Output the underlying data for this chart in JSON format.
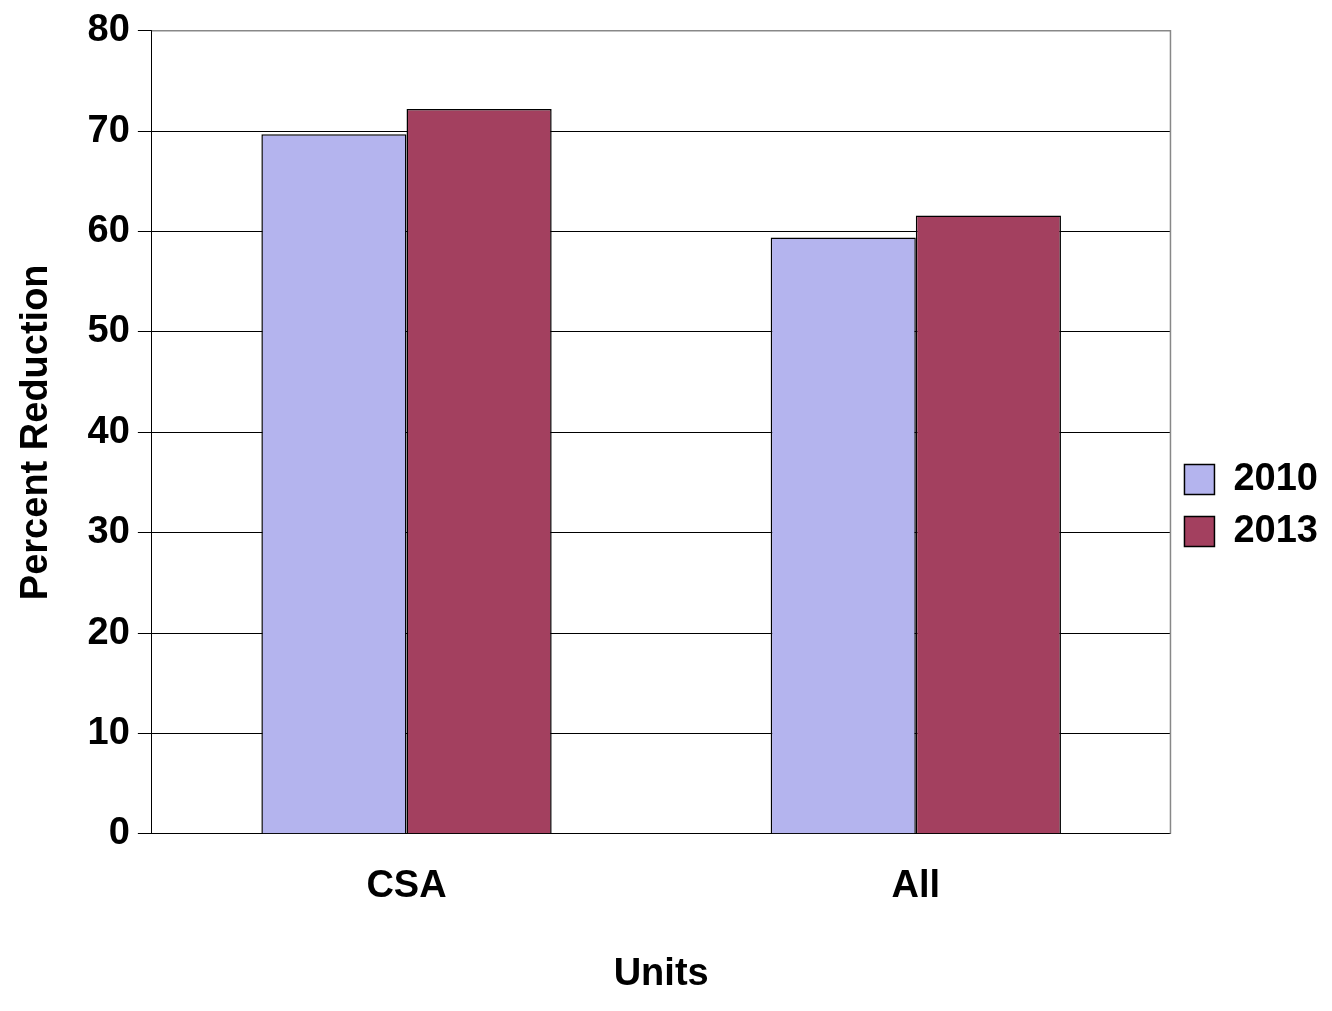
{
  "chart_data": {
    "type": "bar",
    "xlabel": "Units",
    "ylabel": "Percent Reduction",
    "categories": [
      "CSA",
      "All"
    ],
    "series": [
      {
        "name": "2010",
        "color": "#b4b4ee",
        "values": [
          69.7,
          59.4
        ]
      },
      {
        "name": "2013",
        "color": "#a3405f",
        "values": [
          72.2,
          61.6
        ]
      }
    ],
    "ylim": [
      0,
      80
    ],
    "yticks": [
      0,
      10,
      20,
      30,
      40,
      50,
      60,
      70,
      80
    ],
    "grid": "y",
    "legend": "right"
  }
}
